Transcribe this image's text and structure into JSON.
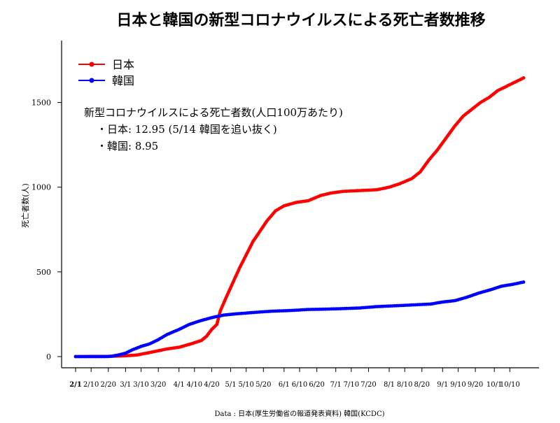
{
  "chart_data": {
    "type": "line",
    "title": "日本と韓国の新型コロナウイルスによる死亡者数推移",
    "ylabel": "死亡者数(人)",
    "xlabel": "",
    "ylim": [
      0,
      1750
    ],
    "yticks": [
      0,
      500,
      1000,
      1500
    ],
    "x_range": [
      "2/1",
      "10/18"
    ],
    "xtick_labels": [
      "2/1",
      "2/10",
      "2/20",
      "3/1",
      "3/10",
      "3/20",
      "4/1",
      "4/10",
      "4/20",
      "5/1",
      "5/10",
      "5/20",
      "6/1",
      "6/10",
      "6/20",
      "7/1",
      "7/10",
      "7/20",
      "8/1",
      "8/10",
      "8/20",
      "9/1",
      "9/10",
      "9/20",
      "10/1",
      "10/10"
    ],
    "grid": false,
    "legend_position": "top-left",
    "annotation": [
      "新型コロナウイルスによる死亡者数(人口100万あたり)",
      "・日本: 12.95 (5/14 韓国を追い抜く)",
      "・韓国: 8.95"
    ],
    "source": "Data : 日本(厚生労働省の報道発表資料) 韓国(KCDC)",
    "series": [
      {
        "name": "日本",
        "color": "#ff0000",
        "points": [
          [
            "2/1",
            0
          ],
          [
            "2/13",
            1
          ],
          [
            "2/20",
            1
          ],
          [
            "2/28",
            4
          ],
          [
            "3/3",
            6
          ],
          [
            "3/8",
            10
          ],
          [
            "3/13",
            20
          ],
          [
            "3/18",
            30
          ],
          [
            "3/25",
            45
          ],
          [
            "4/1",
            55
          ],
          [
            "4/8",
            75
          ],
          [
            "4/14",
            95
          ],
          [
            "4/17",
            120
          ],
          [
            "4/20",
            160
          ],
          [
            "4/23",
            190
          ],
          [
            "4/25",
            270
          ],
          [
            "4/28",
            340
          ],
          [
            "5/2",
            430
          ],
          [
            "5/6",
            520
          ],
          [
            "5/10",
            600
          ],
          [
            "5/14",
            680
          ],
          [
            "5/18",
            740
          ],
          [
            "5/22",
            800
          ],
          [
            "5/27",
            860
          ],
          [
            "6/1",
            890
          ],
          [
            "6/8",
            910
          ],
          [
            "6/15",
            920
          ],
          [
            "6/22",
            950
          ],
          [
            "6/28",
            965
          ],
          [
            "7/5",
            975
          ],
          [
            "7/15",
            980
          ],
          [
            "7/25",
            985
          ],
          [
            "8/1",
            1000
          ],
          [
            "8/7",
            1020
          ],
          [
            "8/14",
            1050
          ],
          [
            "8/19",
            1090
          ],
          [
            "8/24",
            1160
          ],
          [
            "8/29",
            1220
          ],
          [
            "9/3",
            1290
          ],
          [
            "9/8",
            1360
          ],
          [
            "9/13",
            1420
          ],
          [
            "9/18",
            1460
          ],
          [
            "9/23",
            1500
          ],
          [
            "9/28",
            1530
          ],
          [
            "10/3",
            1570
          ],
          [
            "10/9",
            1600
          ],
          [
            "10/14",
            1625
          ],
          [
            "10/18",
            1645
          ]
        ]
      },
      {
        "name": "韓国",
        "color": "#0000ff",
        "points": [
          [
            "2/1",
            0
          ],
          [
            "2/18",
            0
          ],
          [
            "2/22",
            2
          ],
          [
            "2/26",
            10
          ],
          [
            "3/1",
            20
          ],
          [
            "3/5",
            40
          ],
          [
            "3/10",
            60
          ],
          [
            "3/15",
            75
          ],
          [
            "3/20",
            100
          ],
          [
            "3/25",
            130
          ],
          [
            "4/1",
            160
          ],
          [
            "4/7",
            190
          ],
          [
            "4/13",
            210
          ],
          [
            "4/20",
            230
          ],
          [
            "4/27",
            245
          ],
          [
            "5/4",
            252
          ],
          [
            "5/14",
            260
          ],
          [
            "5/25",
            268
          ],
          [
            "6/5",
            272
          ],
          [
            "6/15",
            278
          ],
          [
            "6/25",
            280
          ],
          [
            "7/5",
            283
          ],
          [
            "7/15",
            287
          ],
          [
            "7/25",
            295
          ],
          [
            "8/5",
            300
          ],
          [
            "8/15",
            305
          ],
          [
            "8/25",
            310
          ],
          [
            "9/1",
            322
          ],
          [
            "9/8",
            330
          ],
          [
            "9/15",
            350
          ],
          [
            "9/22",
            375
          ],
          [
            "9/29",
            395
          ],
          [
            "10/5",
            415
          ],
          [
            "10/11",
            425
          ],
          [
            "10/18",
            440
          ]
        ]
      }
    ]
  }
}
